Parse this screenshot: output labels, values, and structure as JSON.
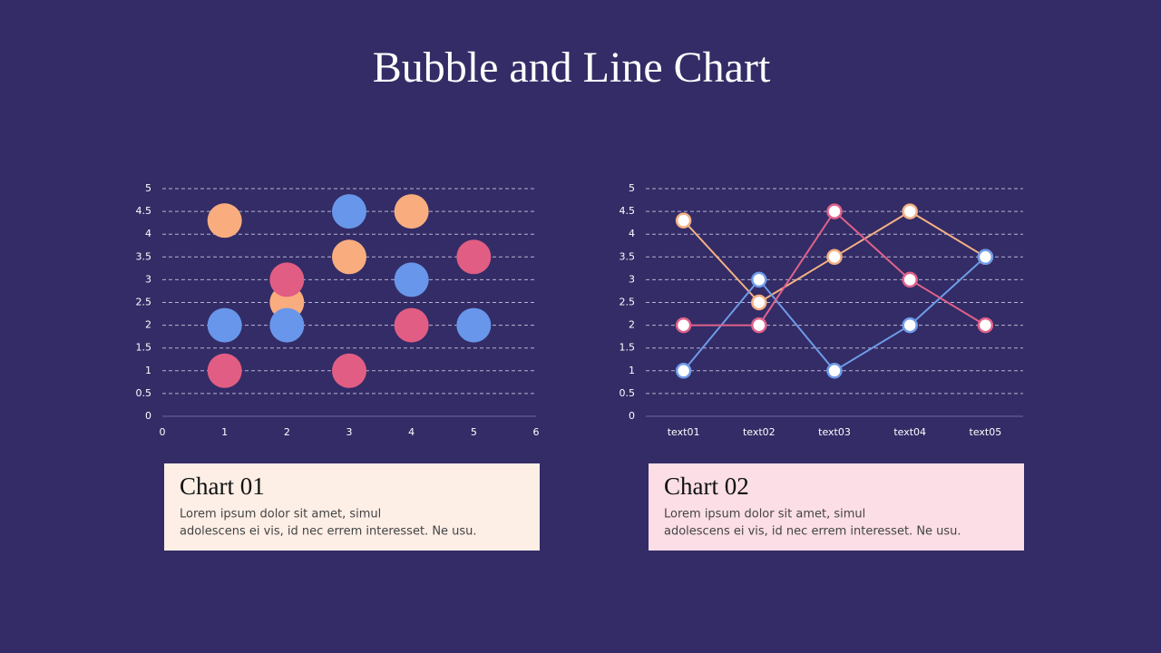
{
  "title": "Bubble and Line Chart",
  "chart_data": [
    {
      "type": "scatter",
      "xlim": [
        0,
        6
      ],
      "xticks": [
        0,
        1,
        2,
        3,
        4,
        5,
        6
      ],
      "ylim": [
        0,
        5
      ],
      "yticks": [
        0,
        0.5,
        1,
        1.5,
        2,
        2.5,
        3,
        3.5,
        4,
        4.5,
        5
      ],
      "grid": true,
      "series": [
        {
          "color": "#f9ad7e",
          "x": [
            1,
            2,
            3,
            4
          ],
          "values": [
            4.3,
            2.5,
            3.5,
            4.5
          ]
        },
        {
          "color": "#6896ea",
          "x": [
            1,
            2,
            3,
            4,
            5
          ],
          "values": [
            2,
            2,
            4.5,
            3,
            2
          ]
        },
        {
          "color": "#e15d83",
          "x": [
            1,
            2,
            3,
            4,
            5
          ],
          "values": [
            1,
            3,
            1,
            2,
            3.5
          ]
        }
      ]
    },
    {
      "type": "line",
      "categories": [
        "text01",
        "text02",
        "text03",
        "text04",
        "text05"
      ],
      "ylim": [
        0,
        5
      ],
      "yticks": [
        0,
        0.5,
        1,
        1.5,
        2,
        2.5,
        3,
        3.5,
        4,
        4.5,
        5
      ],
      "grid": true,
      "series": [
        {
          "color": "#f4b183",
          "values": [
            4.3,
            2.5,
            3.5,
            4.5,
            3.5
          ]
        },
        {
          "color": "#6f9be8",
          "values": [
            1,
            3,
            1,
            2,
            3.5
          ]
        },
        {
          "color": "#e0628a",
          "values": [
            2,
            2,
            4.5,
            3,
            2
          ]
        }
      ]
    }
  ],
  "cards": [
    {
      "title": "Chart 01",
      "lines": [
        "Lorem  ipsum dolor  sit amet,  simul",
        "adolescens ei vis, id nec errem  interesset. Ne usu."
      ]
    },
    {
      "title": "Chart 02",
      "lines": [
        "Lorem  ipsum dolor  sit amet,  simul",
        "adolescens ei vis, id nec errem  interesset. Ne usu."
      ]
    }
  ]
}
